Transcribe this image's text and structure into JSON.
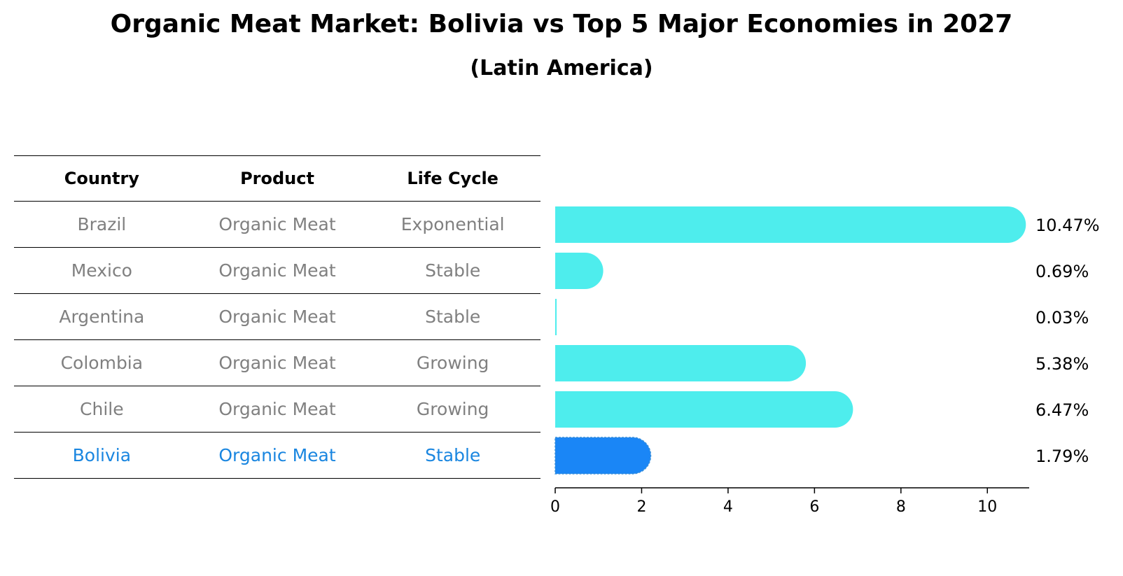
{
  "title": "Organic Meat Market: Bolivia vs Top 5 Major Economies in 2027",
  "subtitle": "(Latin America)",
  "table": {
    "headers": [
      "Country",
      "Product",
      "Life Cycle"
    ],
    "rows": [
      [
        "Brazil",
        "Organic Meat",
        "Exponential"
      ],
      [
        "Mexico",
        "Organic Meat",
        "Stable"
      ],
      [
        "Argentina",
        "Organic Meat",
        "Stable"
      ],
      [
        "Colombia",
        "Organic Meat",
        "Growing"
      ],
      [
        "Chile",
        "Organic Meat",
        "Growing"
      ],
      [
        "Bolivia",
        "Organic Meat",
        "Stable"
      ]
    ],
    "highlight_row": 5
  },
  "chart_data": {
    "type": "bar",
    "orientation": "horizontal",
    "categories": [
      "Brazil",
      "Mexico",
      "Argentina",
      "Colombia",
      "Chile",
      "Bolivia"
    ],
    "values": [
      10.47,
      0.69,
      0.03,
      5.38,
      6.47,
      1.79
    ],
    "value_labels": [
      "10.47%",
      "0.69%",
      "0.03%",
      "5.38%",
      "6.47%",
      "1.79%"
    ],
    "xlim": [
      0,
      11
    ],
    "xticks": [
      0,
      2,
      4,
      6,
      8,
      10
    ],
    "grid": false,
    "colors": {
      "default": "#4eeded",
      "highlight": "#1a86f6"
    },
    "highlight_index": 5
  }
}
